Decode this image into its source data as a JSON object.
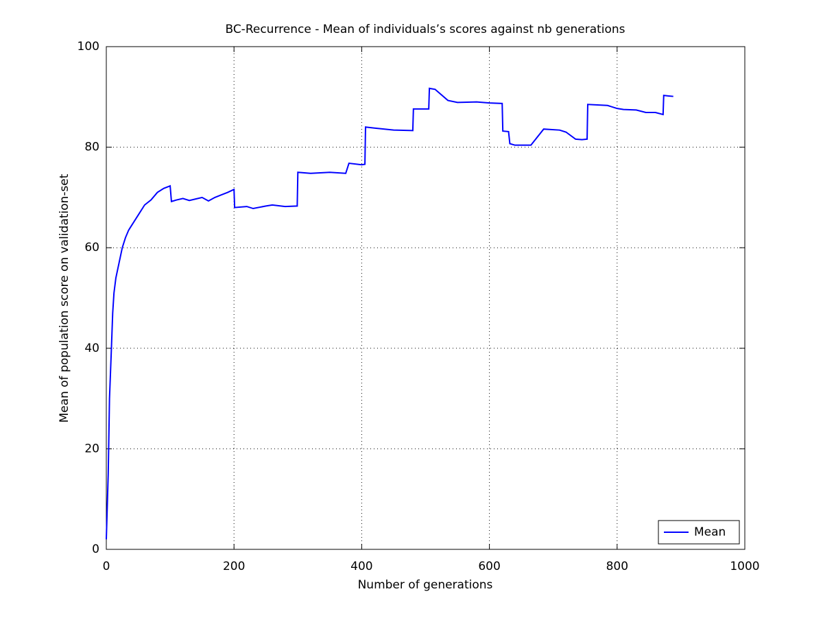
{
  "chart_data": {
    "type": "line",
    "title": "BC-Recurrence - Mean of individuals’s scores against nb generations",
    "x_label": "Number of generations",
    "y_label": "Mean of population score on validation-set",
    "x": [
      0,
      3,
      5,
      8,
      10,
      12,
      15,
      20,
      25,
      30,
      35,
      40,
      50,
      60,
      70,
      80,
      90,
      100,
      102,
      110,
      120,
      130,
      140,
      150,
      160,
      170,
      180,
      190,
      200,
      201,
      220,
      230,
      250,
      260,
      280,
      299,
      300,
      320,
      350,
      375,
      380,
      400,
      405,
      406,
      420,
      450,
      480,
      481,
      505,
      506,
      515,
      535,
      550,
      580,
      600,
      620,
      621,
      630,
      632,
      640,
      665,
      685,
      710,
      720,
      735,
      745,
      753,
      754,
      785,
      800,
      810,
      830,
      845,
      860,
      872,
      873,
      880,
      888
    ],
    "series": [
      {
        "name": "Mean",
        "color": "#0000ff",
        "values": [
          2,
          15,
          30,
          40,
          47,
          51,
          54,
          57,
          60,
          62,
          63.5,
          64.5,
          66.5,
          68.5,
          69.5,
          71,
          71.8,
          72.3,
          69.2,
          69.5,
          69.8,
          69.4,
          69.7,
          70,
          69.3,
          70,
          70.5,
          71,
          71.6,
          68,
          68.2,
          67.8,
          68.3,
          68.5,
          68.2,
          68.3,
          75,
          74.8,
          75,
          74.8,
          76.8,
          76.5,
          76.6,
          84,
          83.8,
          83.4,
          83.3,
          87.6,
          87.6,
          91.7,
          91.5,
          89.3,
          88.9,
          89,
          88.8,
          88.7,
          83.2,
          83.1,
          80.7,
          80.4,
          80.4,
          83.6,
          83.4,
          83,
          81.6,
          81.5,
          81.6,
          88.5,
          88.3,
          87.7,
          87.5,
          87.4,
          86.9,
          86.9,
          86.5,
          90.3,
          90.2,
          90.1
        ]
      }
    ],
    "xlim": [
      0,
      1000
    ],
    "xticks": [
      0,
      200,
      400,
      600,
      800,
      1000
    ],
    "ylim": [
      0,
      100
    ],
    "yticks": [
      0,
      20,
      40,
      60,
      80,
      100
    ],
    "grid": true,
    "legend": "lower right"
  }
}
